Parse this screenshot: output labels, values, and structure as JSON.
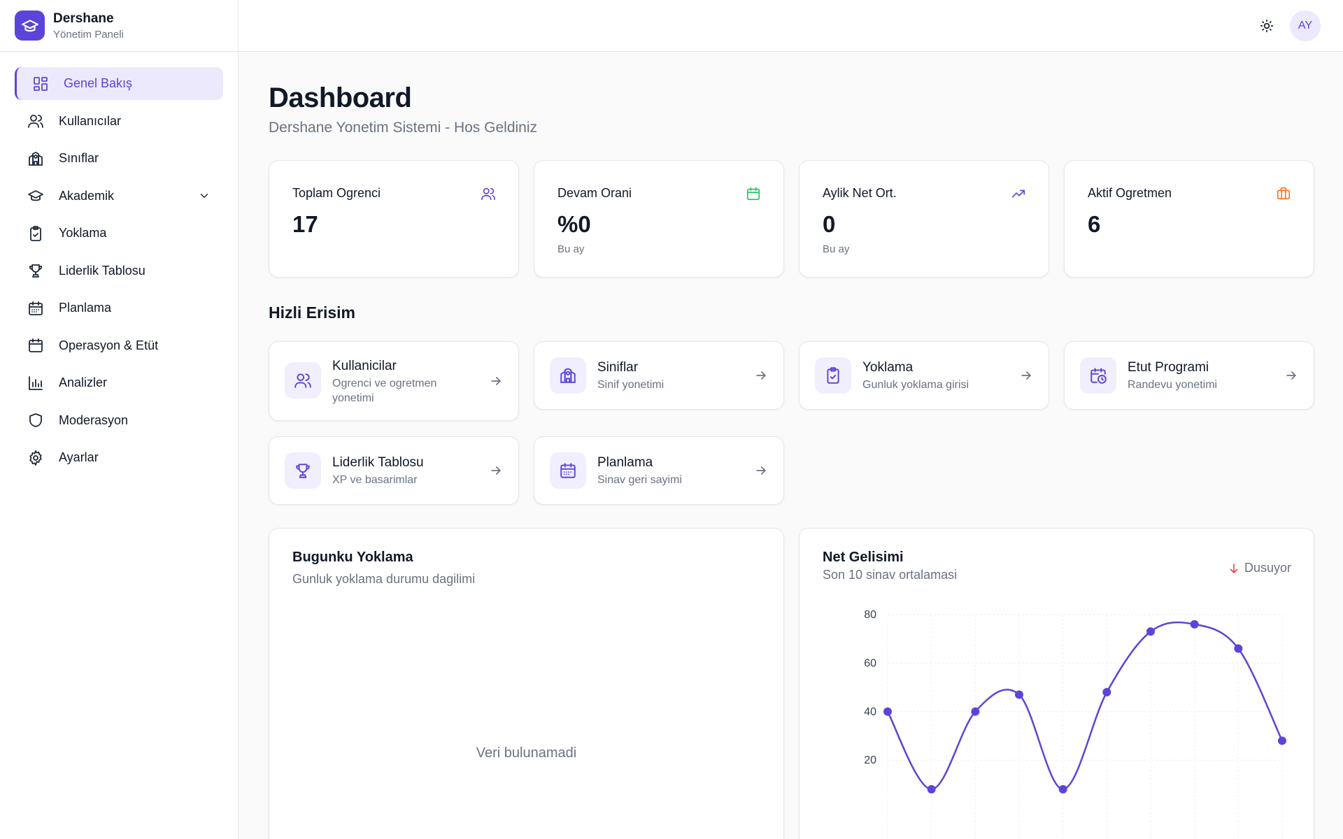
{
  "brand": {
    "name": "Dershane",
    "subtitle": "Yönetim Paneli"
  },
  "sidebar": {
    "items": [
      {
        "label": "Genel Bakış",
        "icon": "grid-icon",
        "active": true
      },
      {
        "label": "Kullanıcılar",
        "icon": "users-icon"
      },
      {
        "label": "Sınıflar",
        "icon": "school-icon"
      },
      {
        "label": "Akademik",
        "icon": "graduation-cap-icon",
        "expandable": true
      },
      {
        "label": "Yoklama",
        "icon": "clipboard-check-icon"
      },
      {
        "label": "Liderlik Tablosu",
        "icon": "trophy-icon"
      },
      {
        "label": "Planlama",
        "icon": "calendar-days-icon"
      },
      {
        "label": "Operasyon & Etüt",
        "icon": "calendar-icon"
      },
      {
        "label": "Analizler",
        "icon": "bar-chart-icon"
      },
      {
        "label": "Moderasyon",
        "icon": "shield-icon"
      },
      {
        "label": "Ayarlar",
        "icon": "gear-icon"
      }
    ]
  },
  "topbar": {
    "avatar_initials": "AY",
    "theme_icon": "sun-icon"
  },
  "page": {
    "title": "Dashboard",
    "subtitle": "Dershane Yonetim Sistemi - Hos Geldiniz"
  },
  "stats": [
    {
      "label": "Toplam Ogrenci",
      "value": "17",
      "note": "",
      "icon": "users-icon",
      "color": "#5b45d9"
    },
    {
      "label": "Devam Orani",
      "value": "%0",
      "note": "Bu ay",
      "icon": "calendar-icon",
      "color": "#22c55e"
    },
    {
      "label": "Aylik Net Ort.",
      "value": "0",
      "note": "Bu ay",
      "icon": "trending-up-icon",
      "color": "#5b45d9"
    },
    {
      "label": "Aktif Ogretmen",
      "value": "6",
      "note": "",
      "icon": "briefcase-icon",
      "color": "#f97316"
    }
  ],
  "quick_access": {
    "title": "Hizli Erisim",
    "items": [
      {
        "title": "Kullanicilar",
        "desc": "Ogrenci ve ogretmen yonetimi",
        "icon": "users-icon"
      },
      {
        "title": "Siniflar",
        "desc": "Sinif yonetimi",
        "icon": "school-icon"
      },
      {
        "title": "Yoklama",
        "desc": "Gunluk yoklama girisi",
        "icon": "clipboard-check-icon"
      },
      {
        "title": "Etut Programi",
        "desc": "Randevu yonetimi",
        "icon": "calendar-clock-icon"
      },
      {
        "title": "Liderlik Tablosu",
        "desc": "XP ve basarimlar",
        "icon": "trophy-icon"
      },
      {
        "title": "Planlama",
        "desc": "Sinav geri sayimi",
        "icon": "calendar-days-icon"
      }
    ]
  },
  "attendance": {
    "title": "Bugunku Yoklama",
    "subtitle": "Gunluk yoklama durumu dagilimi",
    "empty": "Veri bulunamadi"
  },
  "net_progress": {
    "title": "Net Gelisimi",
    "subtitle": "Son 10 sinav ortalamasi",
    "trend": "Dusuyor",
    "trend_color": "#ef4444"
  },
  "chart_data": {
    "type": "line",
    "title": "Net Gelisimi",
    "x": [
      1,
      2,
      3,
      4,
      5,
      6,
      7,
      8,
      9,
      10
    ],
    "series": [
      {
        "values": [
          40,
          8,
          40,
          47,
          8,
          48,
          73,
          76,
          66,
          28
        ],
        "color": "#5b45d9"
      }
    ],
    "y_ticks": [
      "80",
      "60",
      "40",
      "20"
    ],
    "ylim": [
      0,
      80
    ],
    "grid": true
  }
}
